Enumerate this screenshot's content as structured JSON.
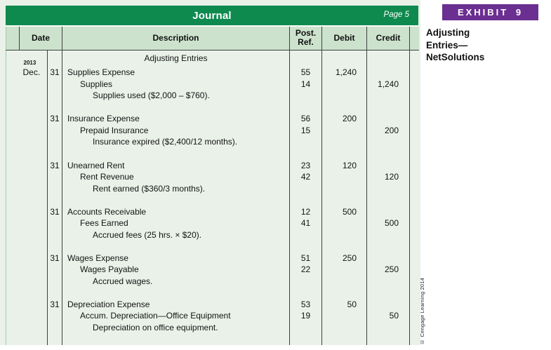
{
  "exhibit": {
    "label": "EXHIBIT 9",
    "title_lines": [
      "Adjusting",
      "Entries—",
      "NetSolutions"
    ],
    "accent_color": "#6b2e91"
  },
  "journal": {
    "title": "Journal",
    "page_label": "Page 5",
    "columns": {
      "date": "Date",
      "description": "Description",
      "post_ref_line1": "Post.",
      "post_ref_line2": "Ref.",
      "debit": "Debit",
      "credit": "Credit"
    },
    "year": "2013",
    "month": "Dec.",
    "section_heading": "Adjusting Entries",
    "entries": [
      {
        "day": "31",
        "debit_account": "Supplies Expense",
        "debit_ref": "55",
        "debit_amount": "1,240",
        "credit_account": "Supplies",
        "credit_ref": "14",
        "credit_amount": "1,240",
        "memo": "Supplies used ($2,000 – $760)."
      },
      {
        "day": "31",
        "debit_account": "Insurance Expense",
        "debit_ref": "56",
        "debit_amount": "200",
        "credit_account": "Prepaid Insurance",
        "credit_ref": "15",
        "credit_amount": "200",
        "memo": "Insurance expired ($2,400/12 months)."
      },
      {
        "day": "31",
        "debit_account": "Unearned Rent",
        "debit_ref": "23",
        "debit_amount": "120",
        "credit_account": "Rent Revenue",
        "credit_ref": "42",
        "credit_amount": "120",
        "memo": "Rent earned ($360/3 months)."
      },
      {
        "day": "31",
        "debit_account": "Accounts Receivable",
        "debit_ref": "12",
        "debit_amount": "500",
        "credit_account": "Fees Earned",
        "credit_ref": "41",
        "credit_amount": "500",
        "memo": "Accrued fees (25 hrs. × $20)."
      },
      {
        "day": "31",
        "debit_account": "Wages Expense",
        "debit_ref": "51",
        "debit_amount": "250",
        "credit_account": "Wages Payable",
        "credit_ref": "22",
        "credit_amount": "250",
        "memo": "Accrued wages."
      },
      {
        "day": "31",
        "debit_account": "Depreciation Expense",
        "debit_ref": "53",
        "debit_amount": "50",
        "credit_account": "Accum. Depreciation—Office Equipment",
        "credit_ref": "19",
        "credit_amount": "50",
        "memo": "Depreciation on office equipment."
      }
    ]
  },
  "copyright": "© Cengage Learning 2014",
  "colors": {
    "panel_bg": "#e9f1e8",
    "header_row_bg": "#cde2cd",
    "title_bar_green": "#0e8a4f",
    "grid_line": "#3c413d",
    "exhibit_purple": "#6b2e91"
  }
}
